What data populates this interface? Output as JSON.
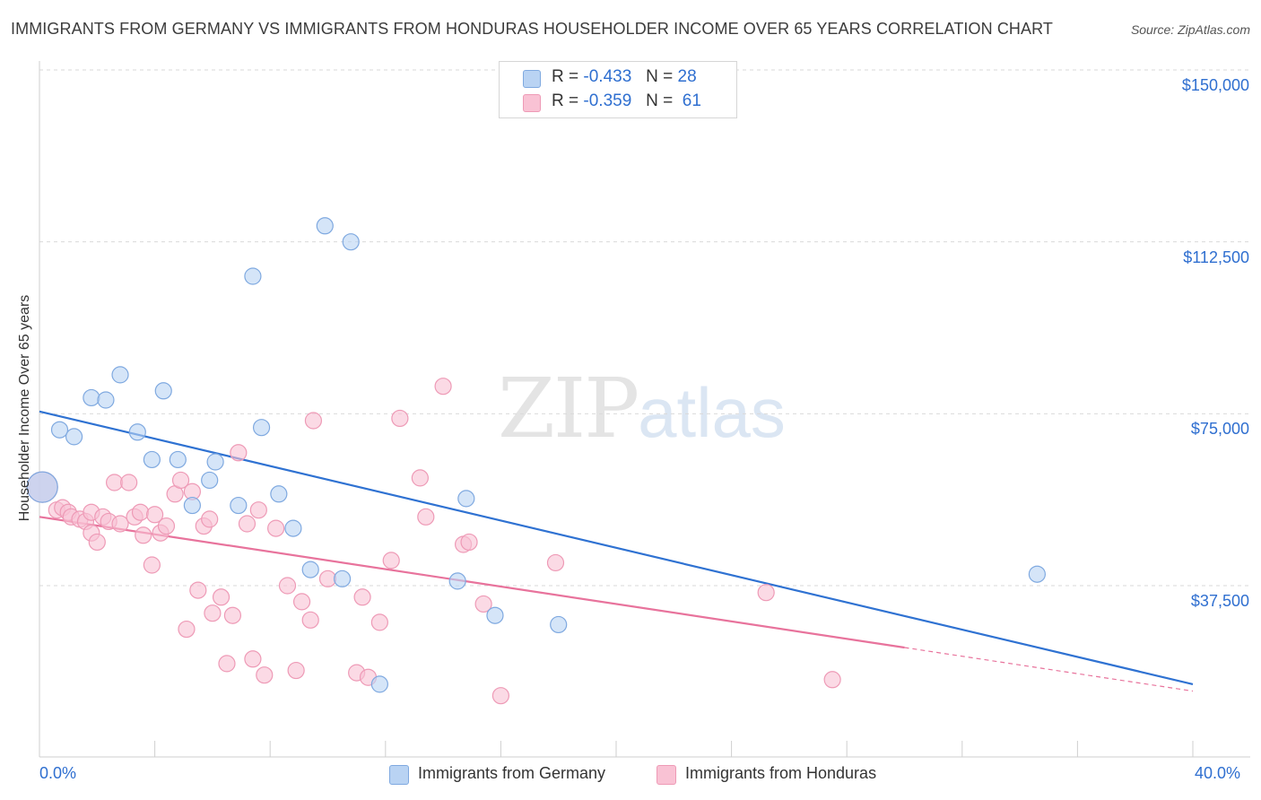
{
  "header": {
    "title": "IMMIGRANTS FROM GERMANY VS IMMIGRANTS FROM HONDURAS HOUSEHOLDER INCOME OVER 65 YEARS CORRELATION CHART",
    "source": "Source: ZipAtlas.com"
  },
  "watermark": {
    "zip": "ZIP",
    "atlas": "atlas"
  },
  "legend": {
    "germany": {
      "r_label": "R =",
      "r_value": "-0.433",
      "n_label": "N =",
      "n_value": "28"
    },
    "honduras": {
      "r_label": "R =",
      "r_value": "-0.359",
      "n_label": "N =",
      "n_value": "61"
    }
  },
  "colors": {
    "germany_fill": "#b9d3f3",
    "germany_stroke": "#7fa9e0",
    "germany_line": "#2f72d2",
    "honduras_fill": "#f9c2d4",
    "honduras_stroke": "#ee9ab6",
    "honduras_line": "#e8739c",
    "axis_text": "#2f6fd0",
    "grid": "#d9d9d9"
  },
  "chart_data": {
    "type": "scatter",
    "title": "IMMIGRANTS FROM GERMANY VS IMMIGRANTS FROM HONDURAS HOUSEHOLDER INCOME OVER 65 YEARS CORRELATION CHART",
    "xlabel": "",
    "ylabel": "Householder Income Over 65 years",
    "xlim": [
      0,
      40
    ],
    "ylim": [
      0,
      155000
    ],
    "x_tick_labels": [
      "0.0%",
      "40.0%"
    ],
    "y_ticks": [
      37500,
      75000,
      112500,
      150000
    ],
    "y_tick_labels": [
      "$37,500",
      "$75,000",
      "$112,500",
      "$150,000"
    ],
    "grid": "horizontal dashed",
    "legend_position": "top-center",
    "series": [
      {
        "name": "Immigrants from Germany",
        "points": [
          [
            0.1,
            59000
          ],
          [
            0.7,
            71500
          ],
          [
            1.2,
            70000
          ],
          [
            1.8,
            78500
          ],
          [
            2.3,
            78000
          ],
          [
            2.8,
            83500
          ],
          [
            3.4,
            71000
          ],
          [
            3.9,
            65000
          ],
          [
            4.3,
            80000
          ],
          [
            4.8,
            65000
          ],
          [
            5.3,
            55000
          ],
          [
            5.9,
            60500
          ],
          [
            6.1,
            64500
          ],
          [
            6.9,
            55000
          ],
          [
            7.4,
            105000
          ],
          [
            7.7,
            72000
          ],
          [
            8.3,
            57500
          ],
          [
            8.8,
            50000
          ],
          [
            9.4,
            41000
          ],
          [
            9.9,
            116000
          ],
          [
            10.5,
            39000
          ],
          [
            10.8,
            112500
          ],
          [
            11.8,
            16000
          ],
          [
            14.5,
            38500
          ],
          [
            14.8,
            56500
          ],
          [
            15.8,
            31000
          ],
          [
            18.0,
            29000
          ],
          [
            34.6,
            40000
          ]
        ],
        "trend": {
          "x": [
            0,
            40
          ],
          "y": [
            75500,
            16000
          ]
        }
      },
      {
        "name": "Immigrants from Honduras",
        "points": [
          [
            0.1,
            59000
          ],
          [
            0.6,
            54000
          ],
          [
            0.8,
            54500
          ],
          [
            1.0,
            53500
          ],
          [
            1.1,
            52500
          ],
          [
            1.4,
            52000
          ],
          [
            1.6,
            51500
          ],
          [
            1.8,
            53500
          ],
          [
            1.8,
            49000
          ],
          [
            2.0,
            47000
          ],
          [
            2.2,
            52500
          ],
          [
            2.4,
            51500
          ],
          [
            2.6,
            60000
          ],
          [
            2.8,
            51000
          ],
          [
            3.1,
            60000
          ],
          [
            3.3,
            52500
          ],
          [
            3.5,
            53500
          ],
          [
            3.6,
            48500
          ],
          [
            3.9,
            42000
          ],
          [
            4.0,
            53000
          ],
          [
            4.2,
            49000
          ],
          [
            4.4,
            50500
          ],
          [
            4.7,
            57500
          ],
          [
            4.9,
            60500
          ],
          [
            5.1,
            28000
          ],
          [
            5.3,
            58000
          ],
          [
            5.5,
            36500
          ],
          [
            5.7,
            50500
          ],
          [
            5.9,
            52000
          ],
          [
            6.0,
            31500
          ],
          [
            6.3,
            35000
          ],
          [
            6.5,
            20500
          ],
          [
            6.7,
            31000
          ],
          [
            6.9,
            66500
          ],
          [
            7.2,
            51000
          ],
          [
            7.4,
            21500
          ],
          [
            7.6,
            54000
          ],
          [
            7.8,
            18000
          ],
          [
            8.2,
            50000
          ],
          [
            8.6,
            37500
          ],
          [
            8.9,
            19000
          ],
          [
            9.1,
            34000
          ],
          [
            9.4,
            30000
          ],
          [
            9.5,
            73500
          ],
          [
            10.0,
            39000
          ],
          [
            11.0,
            18500
          ],
          [
            11.2,
            35000
          ],
          [
            11.4,
            17500
          ],
          [
            11.8,
            29500
          ],
          [
            12.2,
            43000
          ],
          [
            12.5,
            74000
          ],
          [
            13.2,
            61000
          ],
          [
            13.4,
            52500
          ],
          [
            14.0,
            81000
          ],
          [
            14.7,
            46500
          ],
          [
            14.9,
            47000
          ],
          [
            15.4,
            33500
          ],
          [
            16.0,
            13500
          ],
          [
            17.9,
            42500
          ],
          [
            25.2,
            36000
          ],
          [
            27.5,
            17000
          ]
        ],
        "trend": {
          "x": [
            0,
            30
          ],
          "y": [
            52500,
            24000
          ],
          "dashed_extension": {
            "x": [
              30,
              40
            ],
            "y": [
              24000,
              14500
            ]
          }
        }
      }
    ]
  },
  "bottom_legend": {
    "germany_label": "Immigrants from Germany",
    "honduras_label": "Immigrants from Honduras"
  }
}
